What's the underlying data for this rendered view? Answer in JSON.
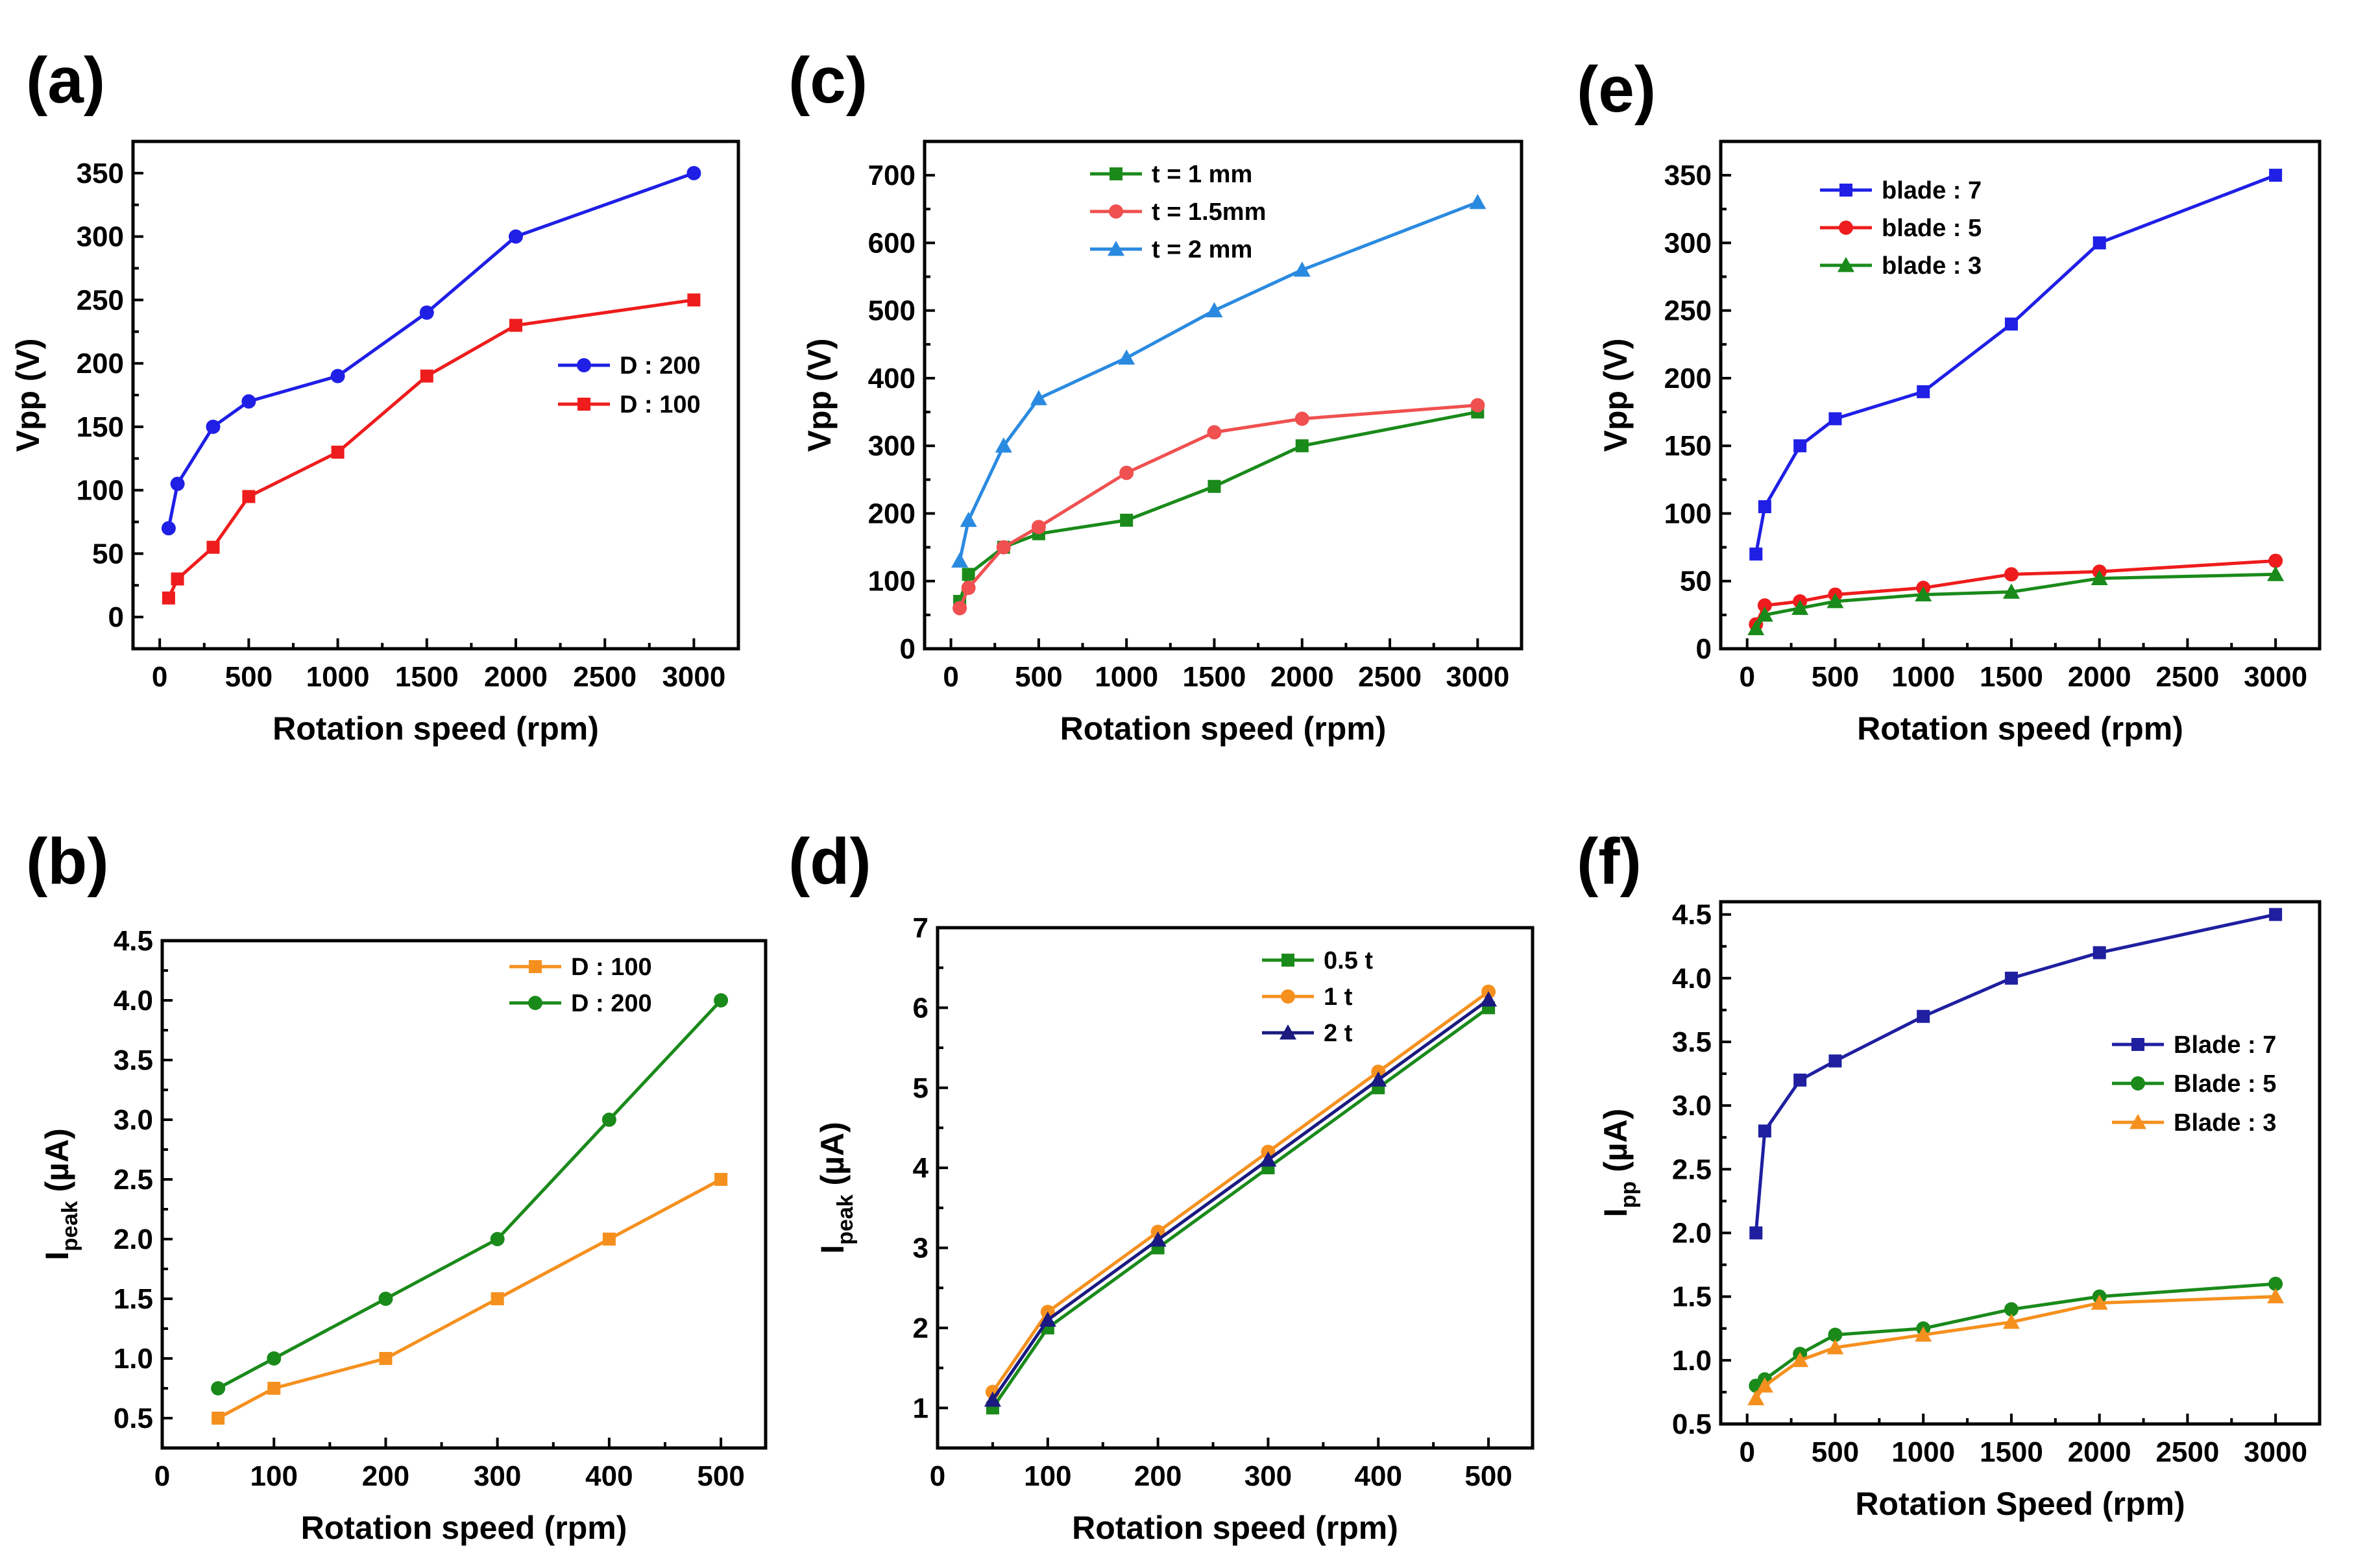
{
  "chart_data": [
    {
      "id": "a",
      "panel_label": "(a)",
      "type": "line",
      "xlabel": "Rotation speed (rpm)",
      "ylabel": "Vpp (V)",
      "ylabel_sub": "",
      "xlim": [
        -150,
        3250
      ],
      "ylim": [
        -25,
        375
      ],
      "xticks": [
        0,
        500,
        1000,
        1500,
        2000,
        2500,
        3000
      ],
      "yticks": [
        0,
        50,
        100,
        150,
        200,
        250,
        300,
        350
      ],
      "ytick_labels": [
        "0",
        "50",
        "100",
        "150",
        "200",
        "250",
        "300",
        "350"
      ],
      "legend_position": "center-right",
      "series": [
        {
          "name": "D : 200",
          "color": "#1f1fe6",
          "marker": "circle",
          "x": [
            50,
            100,
            300,
            500,
            1000,
            1500,
            2000,
            3000
          ],
          "y": [
            70,
            105,
            150,
            170,
            190,
            240,
            300,
            350
          ]
        },
        {
          "name": "D : 100",
          "color": "#ee1c1c",
          "marker": "square",
          "x": [
            50,
            100,
            300,
            500,
            1000,
            1500,
            2000,
            3000
          ],
          "y": [
            15,
            30,
            55,
            95,
            130,
            190,
            230,
            250
          ]
        }
      ]
    },
    {
      "id": "c",
      "panel_label": "(c)",
      "type": "line",
      "xlabel": "Rotation speed (rpm)",
      "ylabel": "Vpp (V)",
      "ylabel_sub": "",
      "xlim": [
        -150,
        3250
      ],
      "ylim": [
        0,
        750
      ],
      "xticks": [
        0,
        500,
        1000,
        1500,
        2000,
        2500,
        3000
      ],
      "yticks": [
        0,
        100,
        200,
        300,
        400,
        500,
        600,
        700
      ],
      "ytick_labels": [
        "0",
        "100",
        "200",
        "300",
        "400",
        "500",
        "600",
        "700"
      ],
      "legend_position": "top-left",
      "series": [
        {
          "name": "t =  1 mm",
          "color": "#1a8a1a",
          "marker": "square",
          "x": [
            50,
            100,
            300,
            500,
            1000,
            1500,
            2000,
            3000
          ],
          "y": [
            70,
            110,
            150,
            170,
            190,
            240,
            300,
            350
          ]
        },
        {
          "name": "t = 1.5mm",
          "color": "#f05050",
          "marker": "circle",
          "x": [
            50,
            100,
            300,
            500,
            1000,
            1500,
            2000,
            3000
          ],
          "y": [
            60,
            90,
            150,
            180,
            260,
            320,
            340,
            360
          ]
        },
        {
          "name": "t =  2 mm",
          "color": "#2a8ae0",
          "marker": "triangle",
          "x": [
            50,
            100,
            300,
            500,
            1000,
            1500,
            2000,
            3000
          ],
          "y": [
            130,
            190,
            300,
            370,
            430,
            500,
            560,
            660
          ]
        }
      ]
    },
    {
      "id": "e",
      "panel_label": "(e)",
      "type": "line",
      "xlabel": "Rotation speed (rpm)",
      "ylabel": "Vpp (V)",
      "ylabel_sub": "",
      "xlim": [
        -150,
        3250
      ],
      "ylim": [
        0,
        375
      ],
      "xticks": [
        0,
        500,
        1000,
        1500,
        2000,
        2500,
        3000
      ],
      "yticks": [
        0,
        50,
        100,
        150,
        200,
        250,
        300,
        350
      ],
      "ytick_labels": [
        "0",
        "50",
        "100",
        "150",
        "200",
        "250",
        "300",
        "350"
      ],
      "legend_position": "top-left",
      "series": [
        {
          "name": "blade : 7",
          "color": "#1f1fe6",
          "marker": "square",
          "x": [
            50,
            100,
            300,
            500,
            1000,
            1500,
            2000,
            3000
          ],
          "y": [
            70,
            105,
            150,
            170,
            190,
            240,
            300,
            350
          ]
        },
        {
          "name": "blade : 5",
          "color": "#ee1c1c",
          "marker": "circle",
          "x": [
            50,
            100,
            300,
            500,
            1000,
            1500,
            2000,
            3000
          ],
          "y": [
            18,
            32,
            35,
            40,
            45,
            55,
            57,
            65
          ]
        },
        {
          "name": "blade : 3",
          "color": "#1a8a1a",
          "marker": "triangle",
          "x": [
            50,
            100,
            300,
            500,
            1000,
            1500,
            2000,
            3000
          ],
          "y": [
            15,
            25,
            30,
            35,
            40,
            42,
            52,
            55
          ]
        }
      ]
    },
    {
      "id": "b",
      "panel_label": "(b)",
      "type": "line",
      "xlabel": "Rotation speed (rpm)",
      "ylabel": "I",
      "ylabel_sub": "peak",
      "ylabel_unit": " (µA)",
      "xlim": [
        0,
        540
      ],
      "ylim": [
        0.25,
        4.5
      ],
      "xticks": [
        0,
        100,
        200,
        300,
        400,
        500
      ],
      "yticks": [
        0.5,
        1.0,
        1.5,
        2.0,
        2.5,
        3.0,
        3.5,
        4.0,
        4.5
      ],
      "ytick_labels": [
        "0.5",
        "1.0",
        "1.5",
        "2.0",
        "2.5",
        "3.0",
        "3.5",
        "4.0",
        "4.5"
      ],
      "legend_position": "top-right",
      "series": [
        {
          "name": "D : 100",
          "color": "#f5901e",
          "marker": "square",
          "x": [
            50,
            100,
            200,
            300,
            400,
            500
          ],
          "y": [
            0.5,
            0.75,
            1.0,
            1.5,
            2.0,
            2.5
          ]
        },
        {
          "name": "D : 200",
          "color": "#1a8a1a",
          "marker": "circle",
          "x": [
            50,
            100,
            200,
            300,
            400,
            500
          ],
          "y": [
            0.75,
            1.0,
            1.5,
            2.0,
            3.0,
            4.0
          ]
        }
      ]
    },
    {
      "id": "d",
      "panel_label": "(d)",
      "type": "line",
      "xlabel": "Rotation speed (rpm)",
      "ylabel": "I",
      "ylabel_sub": "peak",
      "ylabel_unit": " (µA)",
      "xlim": [
        0,
        540
      ],
      "ylim": [
        0.5,
        7
      ],
      "xticks": [
        0,
        100,
        200,
        300,
        400,
        500
      ],
      "yticks": [
        1,
        2,
        3,
        4,
        5,
        6,
        7
      ],
      "ytick_labels": [
        "1",
        "2",
        "3",
        "4",
        "5",
        "6",
        "7"
      ],
      "legend_position": "top-right",
      "series": [
        {
          "name": "0.5 t",
          "color": "#1a8a1a",
          "marker": "square",
          "x": [
            50,
            100,
            200,
            300,
            400,
            500
          ],
          "y": [
            1.0,
            2.0,
            3.0,
            4.0,
            5.0,
            6.0
          ]
        },
        {
          "name": "1  t",
          "color": "#f5901e",
          "marker": "circle",
          "x": [
            50,
            100,
            200,
            300,
            400,
            500
          ],
          "y": [
            1.2,
            2.2,
            3.2,
            4.2,
            5.2,
            6.2
          ]
        },
        {
          "name": "2  t",
          "color": "#1a1a80",
          "marker": "triangle",
          "x": [
            50,
            100,
            200,
            300,
            400,
            500
          ],
          "y": [
            1.1,
            2.1,
            3.1,
            4.1,
            5.1,
            6.1
          ]
        }
      ]
    },
    {
      "id": "f",
      "panel_label": "(f)",
      "type": "line",
      "xlabel": "Rotation Speed (rpm)",
      "ylabel": "I",
      "ylabel_sub": "pp",
      "ylabel_unit": " (µA)",
      "xlim": [
        -150,
        3250
      ],
      "ylim": [
        0.5,
        4.6
      ],
      "xticks": [
        0,
        500,
        1000,
        1500,
        2000,
        2500,
        3000
      ],
      "yticks": [
        0.5,
        1.0,
        1.5,
        2.0,
        2.5,
        3.0,
        3.5,
        4.0,
        4.5
      ],
      "ytick_labels": [
        "0.5",
        "1.0",
        "1.5",
        "2.0",
        "2.5",
        "3.0",
        "3.5",
        "4.0",
        "4.5"
      ],
      "legend_position": "center-right",
      "series": [
        {
          "name": "Blade : 7",
          "color": "#1f1fa0",
          "marker": "square",
          "x": [
            50,
            100,
            300,
            500,
            1000,
            1500,
            2000,
            3000
          ],
          "y": [
            2.0,
            2.8,
            3.2,
            3.35,
            3.7,
            4.0,
            4.2,
            4.5
          ]
        },
        {
          "name": "Blade : 5",
          "color": "#1a8a1a",
          "marker": "circle",
          "x": [
            50,
            100,
            300,
            500,
            1000,
            1500,
            2000,
            3000
          ],
          "y": [
            0.8,
            0.85,
            1.05,
            1.2,
            1.25,
            1.4,
            1.5,
            1.6
          ]
        },
        {
          "name": "Blade : 3",
          "color": "#f5901e",
          "marker": "triangle",
          "x": [
            50,
            100,
            300,
            500,
            1000,
            1500,
            2000,
            3000
          ],
          "y": [
            0.7,
            0.8,
            1.0,
            1.1,
            1.2,
            1.3,
            1.45,
            1.5
          ]
        }
      ]
    }
  ]
}
